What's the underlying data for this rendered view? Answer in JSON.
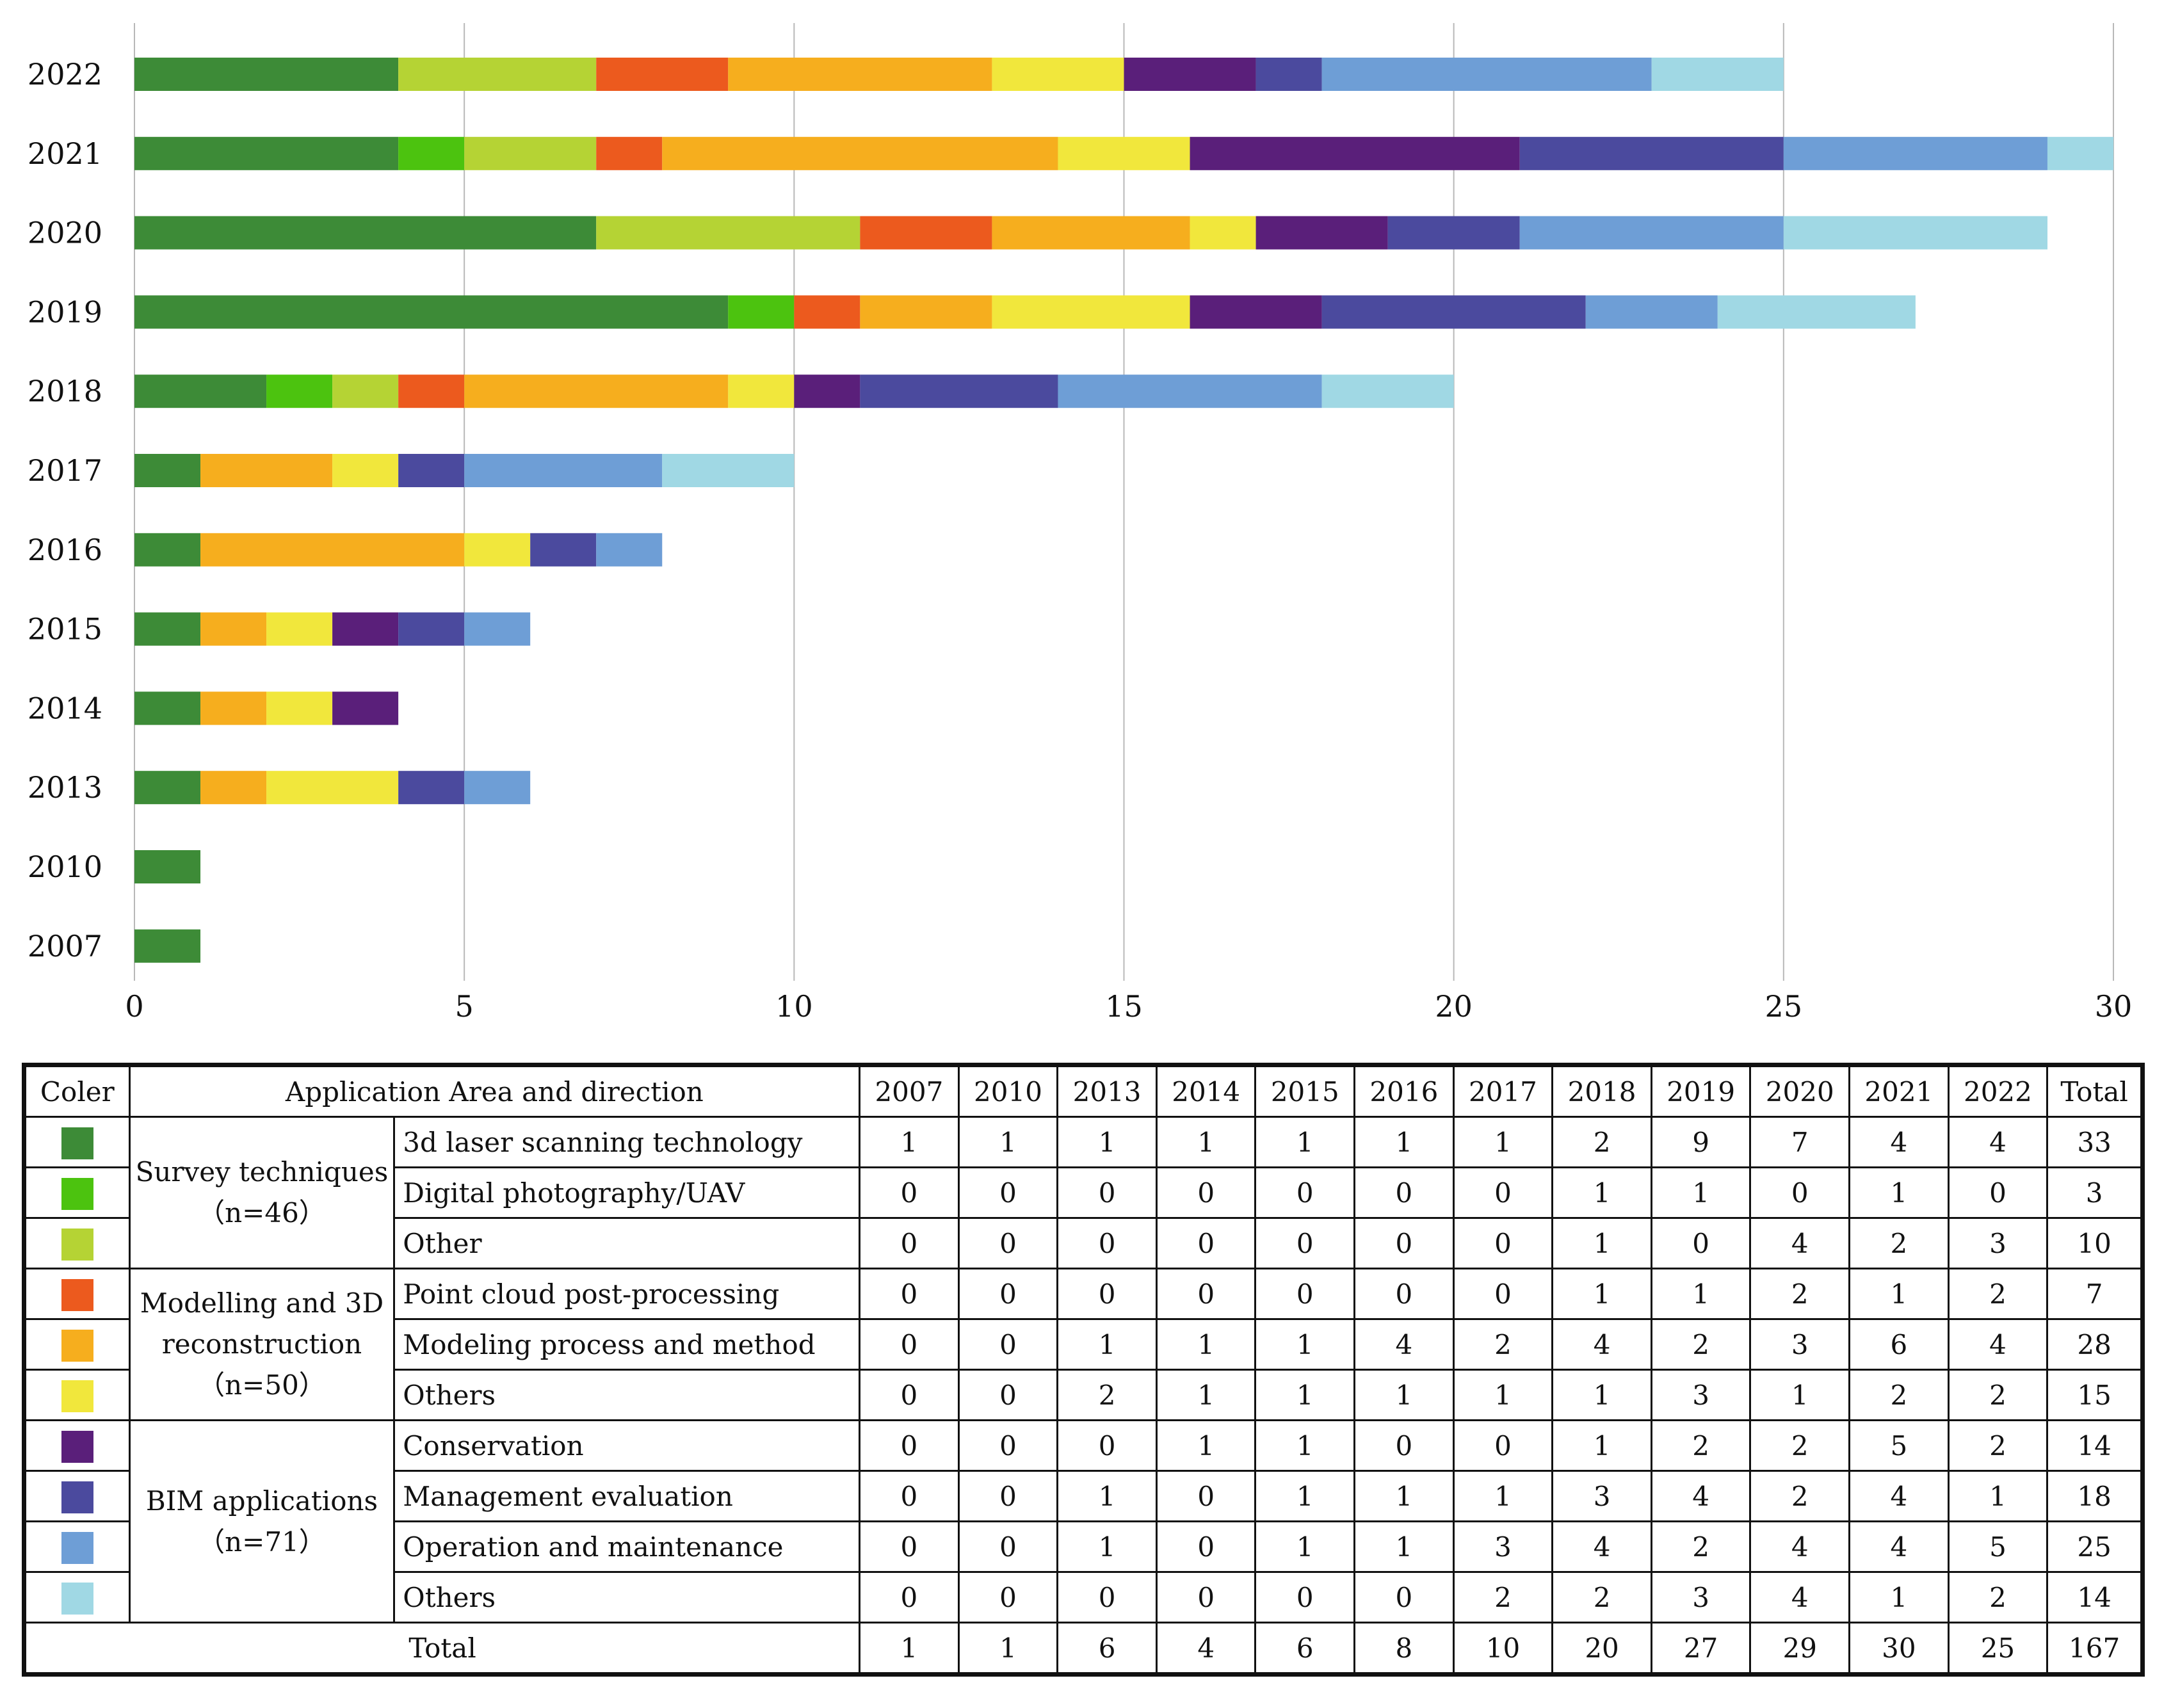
{
  "chart_data": {
    "type": "bar",
    "orientation": "horizontal",
    "stacked": true,
    "categories": [
      "2022",
      "2021",
      "2020",
      "2019",
      "2018",
      "2017",
      "2016",
      "2015",
      "2014",
      "2013",
      "2010",
      "2007"
    ],
    "series": [
      {
        "name": "3d laser scanning technology",
        "color": "#3d8b37",
        "values": [
          4,
          4,
          7,
          9,
          2,
          1,
          1,
          1,
          1,
          1,
          1,
          1
        ]
      },
      {
        "name": "Digital photography/UAV",
        "color": "#4cc30f",
        "values": [
          0,
          1,
          0,
          1,
          1,
          0,
          0,
          0,
          0,
          0,
          0,
          0
        ]
      },
      {
        "name": "Other",
        "color": "#b5d334",
        "values": [
          3,
          2,
          4,
          0,
          1,
          0,
          0,
          0,
          0,
          0,
          0,
          0
        ]
      },
      {
        "name": "Point cloud post-processing",
        "color": "#ec5a1e",
        "values": [
          2,
          1,
          2,
          1,
          1,
          0,
          0,
          0,
          0,
          0,
          0,
          0
        ]
      },
      {
        "name": "Modeling process and method",
        "color": "#f6ae1e",
        "values": [
          4,
          6,
          3,
          2,
          4,
          2,
          4,
          1,
          1,
          1,
          0,
          0
        ]
      },
      {
        "name": "Others",
        "color": "#f1e73c",
        "values": [
          2,
          2,
          1,
          3,
          1,
          1,
          1,
          1,
          1,
          2,
          0,
          0
        ]
      },
      {
        "name": "Conservation",
        "color": "#5a1f7a",
        "values": [
          2,
          5,
          2,
          2,
          1,
          0,
          0,
          1,
          1,
          0,
          0,
          0
        ]
      },
      {
        "name": "Management evaluation",
        "color": "#4b4a9e",
        "values": [
          1,
          4,
          2,
          4,
          3,
          1,
          1,
          1,
          0,
          1,
          0,
          0
        ]
      },
      {
        "name": "Operation and maintenance",
        "color": "#6e9ed6",
        "values": [
          5,
          4,
          4,
          2,
          4,
          3,
          1,
          1,
          0,
          1,
          0,
          0
        ]
      },
      {
        "name": "Others",
        "color": "#a0d8e4",
        "values": [
          2,
          1,
          4,
          3,
          2,
          2,
          0,
          0,
          0,
          0,
          0,
          0
        ]
      }
    ],
    "xlim": [
      0,
      30
    ],
    "xticks": [
      "0",
      "5",
      "10",
      "15",
      "20",
      "25",
      "30"
    ],
    "title": "",
    "xlabel": "",
    "ylabel": "",
    "grid": "vertical"
  },
  "table": {
    "headers": {
      "color": "Coler",
      "area": "Application Area and direction",
      "years": [
        "2007",
        "2010",
        "2013",
        "2014",
        "2015",
        "2016",
        "2017",
        "2018",
        "2019",
        "2020",
        "2021",
        "2022"
      ],
      "total": "Total"
    },
    "groups": [
      {
        "name_lines": [
          "Survey techniques",
          "（n=46）"
        ],
        "rows": [
          {
            "color": "#3d8b37",
            "direction": "3d laser scanning technology",
            "values": [
              "1",
              "1",
              "1",
              "1",
              "1",
              "1",
              "1",
              "2",
              "9",
              "7",
              "4",
              "4"
            ],
            "total": "33"
          },
          {
            "color": "#4cc30f",
            "direction": "Digital photography/UAV",
            "values": [
              "0",
              "0",
              "0",
              "0",
              "0",
              "0",
              "0",
              "1",
              "1",
              "0",
              "1",
              "0"
            ],
            "total": "3"
          },
          {
            "color": "#b5d334",
            "direction": "Other",
            "values": [
              "0",
              "0",
              "0",
              "0",
              "0",
              "0",
              "0",
              "1",
              "0",
              "4",
              "2",
              "3"
            ],
            "total": "10"
          }
        ]
      },
      {
        "name_lines": [
          "Modelling and 3D",
          "reconstruction",
          "（n=50）"
        ],
        "rows": [
          {
            "color": "#ec5a1e",
            "direction": "Point cloud post-processing",
            "values": [
              "0",
              "0",
              "0",
              "0",
              "0",
              "0",
              "0",
              "1",
              "1",
              "2",
              "1",
              "2"
            ],
            "total": "7"
          },
          {
            "color": "#f6ae1e",
            "direction": "Modeling process and method",
            "values": [
              "0",
              "0",
              "1",
              "1",
              "1",
              "4",
              "2",
              "4",
              "2",
              "3",
              "6",
              "4"
            ],
            "total": "28"
          },
          {
            "color": "#f1e73c",
            "direction": "Others",
            "values": [
              "0",
              "0",
              "2",
              "1",
              "1",
              "1",
              "1",
              "1",
              "3",
              "1",
              "2",
              "2"
            ],
            "total": "15"
          }
        ]
      },
      {
        "name_lines": [
          "BIM applications",
          "（n=71）"
        ],
        "rows": [
          {
            "color": "#5a1f7a",
            "direction": "Conservation",
            "values": [
              "0",
              "0",
              "0",
              "1",
              "1",
              "0",
              "0",
              "1",
              "2",
              "2",
              "5",
              "2"
            ],
            "total": "14"
          },
          {
            "color": "#4b4a9e",
            "direction": "Management evaluation",
            "values": [
              "0",
              "0",
              "1",
              "0",
              "1",
              "1",
              "1",
              "3",
              "4",
              "2",
              "4",
              "1"
            ],
            "total": "18"
          },
          {
            "color": "#6e9ed6",
            "direction": "Operation and maintenance",
            "values": [
              "0",
              "0",
              "1",
              "0",
              "1",
              "1",
              "3",
              "4",
              "2",
              "4",
              "4",
              "5"
            ],
            "total": "25"
          },
          {
            "color": "#a0d8e4",
            "direction": "Others",
            "values": [
              "0",
              "0",
              "0",
              "0",
              "0",
              "0",
              "2",
              "2",
              "3",
              "4",
              "1",
              "2"
            ],
            "total": "14"
          }
        ]
      }
    ],
    "total_row": {
      "label": "Total",
      "values": [
        "1",
        "1",
        "6",
        "4",
        "6",
        "8",
        "10",
        "20",
        "27",
        "29",
        "30",
        "25"
      ],
      "total": "167"
    }
  }
}
